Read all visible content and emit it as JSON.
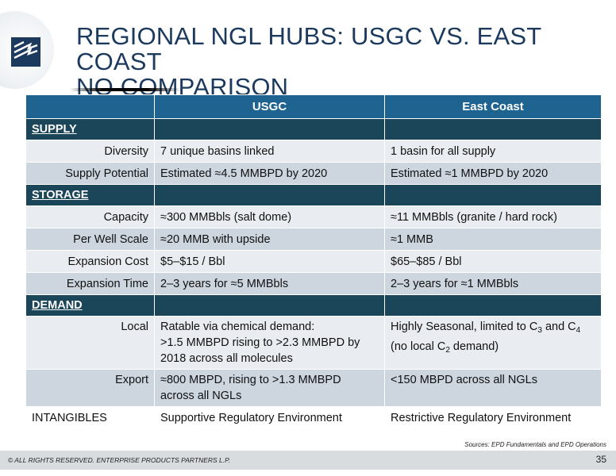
{
  "title": {
    "line1": "REGIONAL NGL HUBS:  USGC VS. EAST COAST",
    "line2": "NO COMPARISON"
  },
  "table": {
    "headers": [
      "",
      "USGC",
      "East Coast"
    ],
    "sections": {
      "supply": "SUPPLY",
      "storage": "STORAGE",
      "demand": "DEMAND"
    },
    "rows": {
      "diversity": {
        "label": "Diversity",
        "usgc": "7 unique basins linked",
        "east": "1 basin for all supply"
      },
      "supply_potential": {
        "label": "Supply Potential",
        "usgc": "Estimated ≈4.5 MMBPD by 2020",
        "east": "Estimated ≈1 MMBPD by 2020"
      },
      "capacity": {
        "label": "Capacity",
        "usgc": "≈300 MMBbls (salt dome)",
        "east": "≈11 MMBbls (granite / hard rock)"
      },
      "per_well": {
        "label": "Per Well Scale",
        "usgc": "≈20 MMB with upside",
        "east": "≈1 MMB"
      },
      "exp_cost": {
        "label": "Expansion Cost",
        "usgc": "$5–$15 / Bbl",
        "east": "$65–$85 / Bbl"
      },
      "exp_time": {
        "label": "Expansion Time",
        "usgc": "2–3 years for ≈5 MMBbls",
        "east": "2–3 years for ≈1 MMBbls"
      },
      "local": {
        "label": "Local",
        "usgc_l1": "Ratable via chemical demand:",
        "usgc_l2": ">1.5 MMBPD rising to >2.3 MMBPD by",
        "usgc_l3": "2018 across all molecules",
        "east_a": "Highly Seasonal, limited to C",
        "east_sub1": "3",
        "east_b": " and C",
        "east_sub2": "4",
        "east_c": "(no local C",
        "east_sub3": "2",
        "east_d": " demand)"
      },
      "export": {
        "label": "Export",
        "usgc_l1": "≈800 MBPD, rising to >1.3 MMBPD",
        "usgc_l2": "across all NGLs",
        "east": "<150 MBPD across all NGLs"
      },
      "intangibles": {
        "label": "INTANGIBLES",
        "usgc": "Supportive Regulatory Environment",
        "east": "Restrictive Regulatory Environment"
      }
    }
  },
  "sources": "Sources:  EPD Fundamentals and EPD Operations",
  "footer": {
    "copyright": "© ALL RIGHTS RESERVED. ENTERPRISE PRODUCTS PARTNERS L.P.",
    "page": "35"
  },
  "colors": {
    "title": "#1c3a5e",
    "header": "#1f6390",
    "section": "#1b4558",
    "row_light": "#e9ecf1",
    "row_dark": "#cdd5df"
  }
}
